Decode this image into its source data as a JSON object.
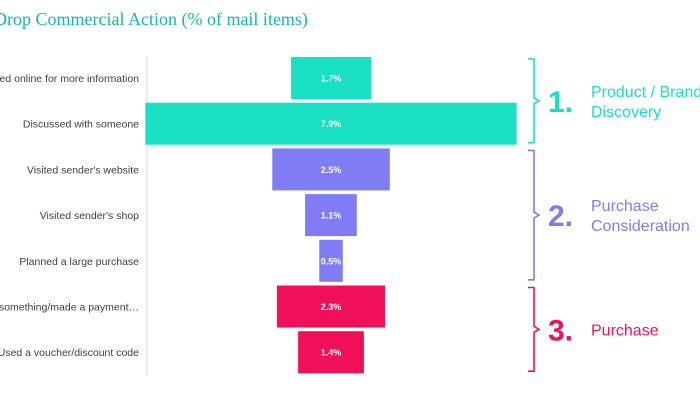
{
  "chart_data": {
    "type": "bar",
    "orientation": "horizontal-funnel",
    "title": "Drop Commercial Action (% of mail items)",
    "categories": [
      "Searched online for more information",
      "Discussed with someone",
      "Visited sender's website",
      "Visited sender's shop",
      "Planned a large  purchase",
      "Bought something/made a payment…",
      "Used a voucher/discount code"
    ],
    "values": [
      1.7,
      7.9,
      2.5,
      1.1,
      0.5,
      2.3,
      1.4
    ],
    "value_labels": [
      "1.7%",
      "7.9%",
      "2.5%",
      "1.1%",
      "0.5%",
      "2.3%",
      "1.4%"
    ],
    "unit": "%",
    "grid": false,
    "legend": "none",
    "stages": [
      {
        "number": "1.",
        "lines": [
          "Product / Brand",
          "Discovery"
        ],
        "color": "#19e0c3",
        "from": 0,
        "to": 1
      },
      {
        "number": "2.",
        "lines": [
          "Purchase",
          "Consideration"
        ],
        "color": "#7f7cf5",
        "from": 2,
        "to": 4
      },
      {
        "number": "3.",
        "lines": [
          "Purchase"
        ],
        "color": "#f0105a",
        "from": 5,
        "to": 6
      }
    ]
  }
}
